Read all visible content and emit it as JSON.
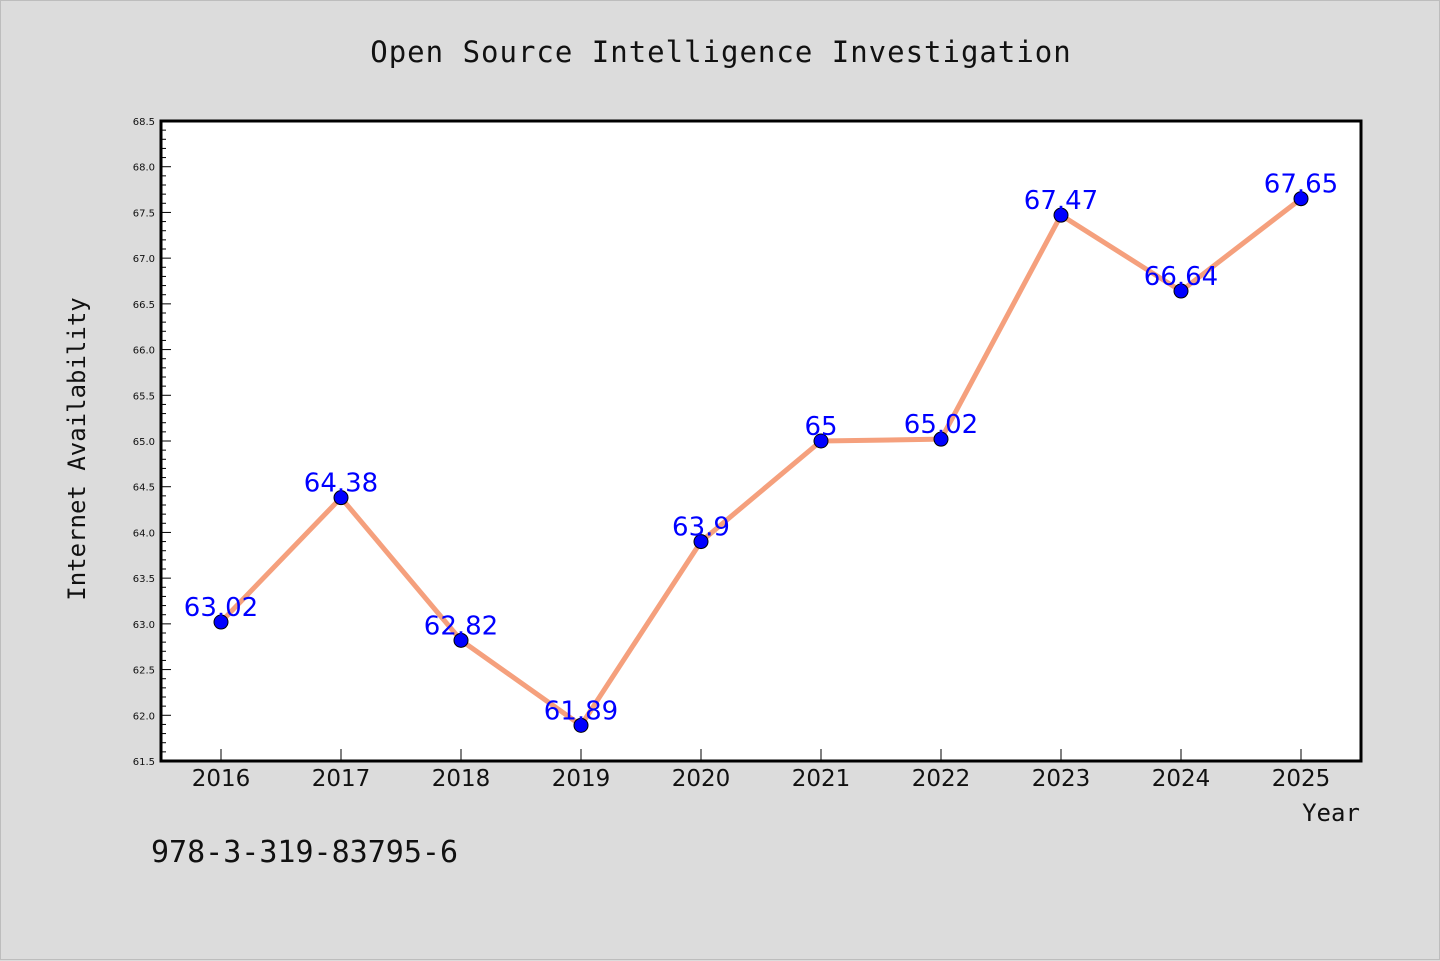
{
  "chart_data": {
    "type": "line",
    "title": "Open Source Intelligence Investigation",
    "xlabel": "Year",
    "ylabel": "Internet Availability",
    "categories": [
      "2016",
      "2017",
      "2018",
      "2019",
      "2020",
      "2021",
      "2022",
      "2023",
      "2024",
      "2025"
    ],
    "values": [
      63.02,
      64.38,
      62.82,
      61.89,
      63.9,
      65,
      65.02,
      67.47,
      66.64,
      67.65
    ],
    "data_labels": [
      "63.02",
      "64.38",
      "62.82",
      "61.89",
      "63.9",
      "65",
      "65.02",
      "67.47",
      "66.64",
      "67.65"
    ],
    "ylim": [
      61.5,
      68.5
    ],
    "yticks": [
      "61.5",
      "62.0",
      "62.5",
      "63.0",
      "63.5",
      "64.0",
      "64.5",
      "65.0",
      "65.5",
      "66.0",
      "66.5",
      "67.0",
      "67.5",
      "68.0",
      "68.5"
    ],
    "grid": false,
    "legend": "none",
    "line_color": "#f5a07d",
    "marker_color": "#0000ff",
    "label_color": "#0000ff"
  },
  "footer": {
    "isbn": "978-3-319-83795-6"
  }
}
